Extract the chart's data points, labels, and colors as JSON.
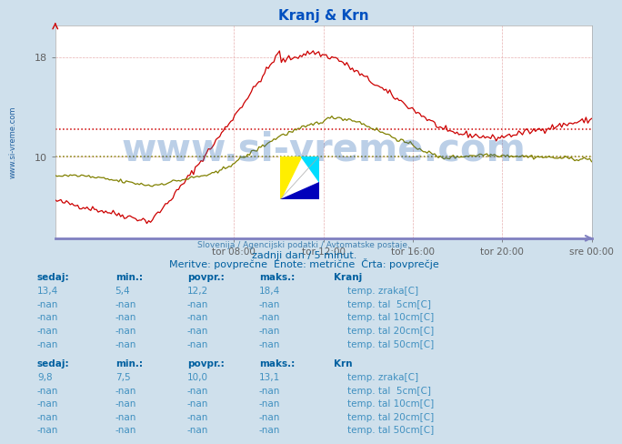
{
  "title": "Kranj & Krn",
  "bg_color": "#cfe0ec",
  "plot_bg": "#ffffff",
  "x_ticks_labels": [
    "tor 08:00",
    "tor 12:00",
    "tor 16:00",
    "tor 20:00",
    "sre 00:00"
  ],
  "y_ticks": [
    10,
    18
  ],
  "y_min": 3.5,
  "y_max": 20.5,
  "kranj_color": "#cc0000",
  "krn_color": "#808000",
  "kranj_avg": 12.2,
  "krn_avg": 10.0,
  "watermark_text": "www.si-vreme.com",
  "source_text": "Slovenija / Agencijski podatki / Avtomatske postaje.",
  "subtitle1": "zadnji dan / 5 minut.",
  "subtitle2": "Meritve: povprečne  Enote: metrične  Črta: povprečje",
  "table_header_color": "#0060a0",
  "table_value_color": "#4090c0",
  "axis_line_color": "#8080c0",
  "grid_color": "#e8b0b0",
  "legend_colors": {
    "kranj_temp_zraka": "#cc0000",
    "kranj_tal_5cm": "#c8a8a8",
    "kranj_tal_10cm": "#b08848",
    "kranj_tal_20cm": "#a06020",
    "kranj_tal_50cm": "#703010",
    "krn_temp_zraka": "#808000",
    "krn_tal_5cm": "#909020",
    "krn_tal_10cm": "#a0a030",
    "krn_tal_20cm": "#b0b030",
    "krn_tal_50cm": "#c0c040"
  },
  "left_text": "www.si-vreme.com",
  "kranj_rows": [
    [
      "13,4",
      "5,4",
      "12,2",
      "18,4"
    ],
    [
      "-nan",
      "-nan",
      "-nan",
      "-nan"
    ],
    [
      "-nan",
      "-nan",
      "-nan",
      "-nan"
    ],
    [
      "-nan",
      "-nan",
      "-nan",
      "-nan"
    ],
    [
      "-nan",
      "-nan",
      "-nan",
      "-nan"
    ]
  ],
  "krn_rows": [
    [
      "9,8",
      "7,5",
      "10,0",
      "13,1"
    ],
    [
      "-nan",
      "-nan",
      "-nan",
      "-nan"
    ],
    [
      "-nan",
      "-nan",
      "-nan",
      "-nan"
    ],
    [
      "-nan",
      "-nan",
      "-nan",
      "-nan"
    ],
    [
      "-nan",
      "-nan",
      "-nan",
      "-nan"
    ]
  ],
  "row_labels_kranj": [
    "temp. zraka[C]",
    "temp. tal  5cm[C]",
    "temp. tal 10cm[C]",
    "temp. tal 20cm[C]",
    "temp. tal 50cm[C]"
  ],
  "row_labels_krn": [
    "temp. zraka[C]",
    "temp. tal  5cm[C]",
    "temp. tal 10cm[C]",
    "temp. tal 20cm[C]",
    "temp. tal 50cm[C]"
  ]
}
